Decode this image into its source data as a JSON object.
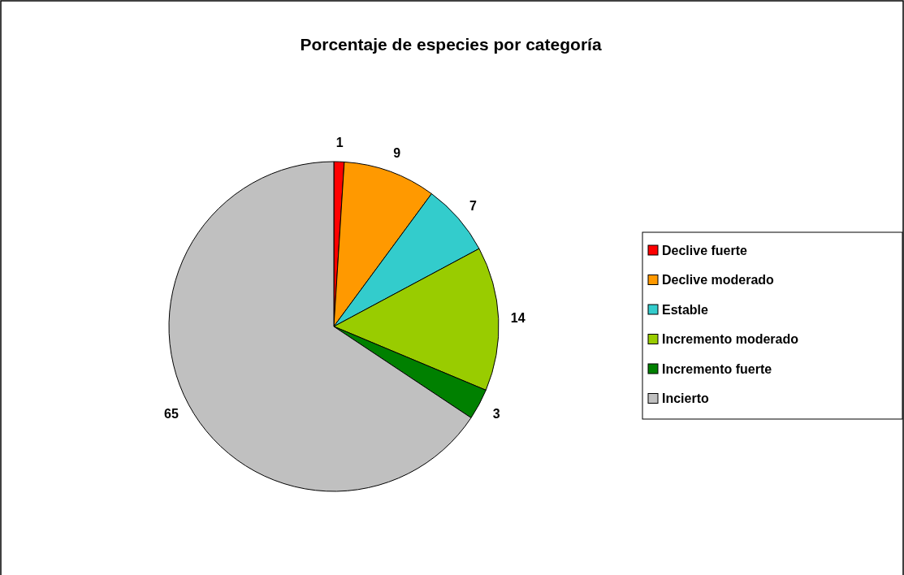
{
  "chart_data": {
    "type": "pie",
    "title": "Porcentaje de especies por categoría",
    "categories": [
      "Declive fuerte",
      "Declive moderado",
      "Estable",
      "Incremento moderado",
      "Incremento fuerte",
      "Incierto"
    ],
    "values": [
      1,
      9,
      7,
      14,
      3,
      65
    ],
    "colors": [
      "#ff0000",
      "#ff9900",
      "#33cccc",
      "#99cc00",
      "#008000",
      "#c0c0c0"
    ],
    "data_labels": true,
    "legend": "right"
  }
}
